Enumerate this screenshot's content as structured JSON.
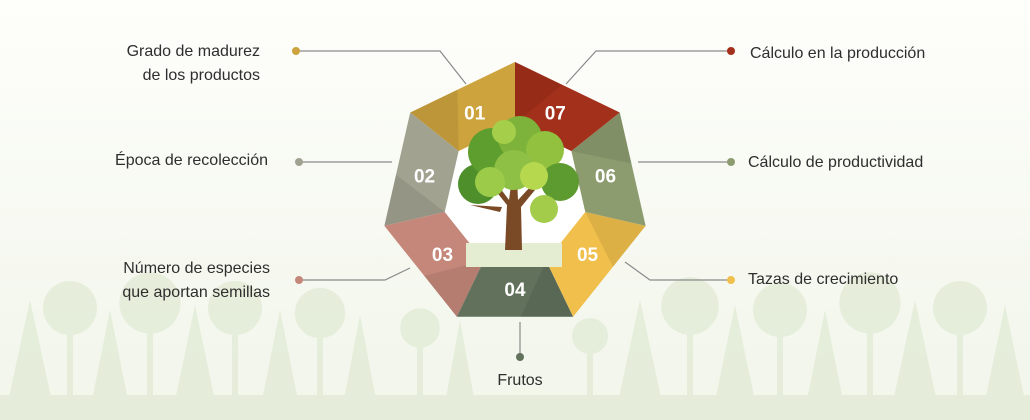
{
  "colors": {
    "segment_01": "#cda33d",
    "segment_02": "#a1a290",
    "segment_03": "#c5877a",
    "segment_04": "#61715c",
    "segment_05": "#f0bf4c",
    "segment_06": "#8d9c6f",
    "segment_07": "#a3301b",
    "background_trees": "#e1ebd5",
    "connector": "#8a8a8a"
  },
  "segments": [
    {
      "number": "01",
      "label_lines": [
        "Grado de madurez",
        "de los productos"
      ],
      "icon": "dot-marker"
    },
    {
      "number": "02",
      "label_lines": [
        "Época de recolección"
      ],
      "icon": "dot-marker"
    },
    {
      "number": "03",
      "label_lines": [
        "Número de especies",
        "que aportan semillas"
      ],
      "icon": "dot-marker"
    },
    {
      "number": "04",
      "label_lines": [
        "Frutos"
      ],
      "icon": "dot-marker"
    },
    {
      "number": "05",
      "label_lines": [
        "Tazas de crecimiento"
      ],
      "icon": "dot-marker"
    },
    {
      "number": "06",
      "label_lines": [
        "Cálculo de productividad"
      ],
      "icon": "dot-marker"
    },
    {
      "number": "07",
      "label_lines": [
        "Cálculo en la producción"
      ],
      "icon": "dot-marker"
    }
  ],
  "center_icon": "tree-icon"
}
